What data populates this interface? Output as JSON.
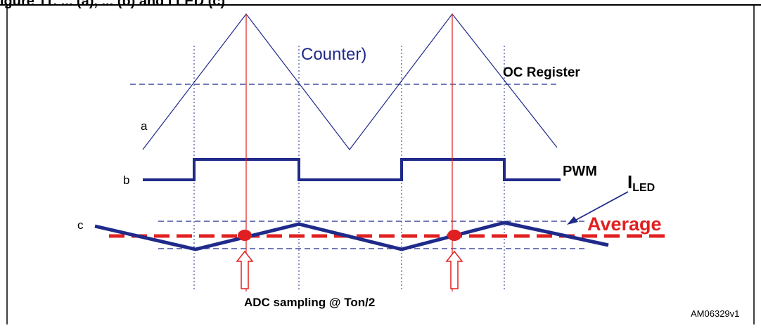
{
  "header": {
    "text": "igure 11. ... (a), ... (b) and I LED (c)"
  },
  "labels": {
    "counter": "Counter)",
    "oc_register": "OC Register",
    "trace_a": "a",
    "trace_b": "b",
    "trace_c": "c",
    "pwm": "PWM",
    "iled_main": "I",
    "iled_sub": "LED",
    "average": "Average",
    "adc_sampling": "ADC sampling @ Ton/2",
    "figure_id": "AM06329v1"
  },
  "colors": {
    "trace": "#1f2a8a",
    "average": "#e02020",
    "marker": "#e02020",
    "frame": "#000000"
  }
}
